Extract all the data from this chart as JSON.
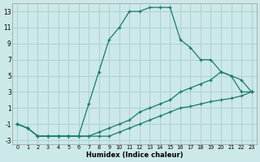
{
  "xlabel": "Humidex (Indice chaleur)",
  "bg_color": "#cce8e8",
  "grid_color": "#a8cccc",
  "line_color": "#1a7a6e",
  "xlim": [
    0,
    23
  ],
  "ylim": [
    -3.5,
    14.0
  ],
  "xticks": [
    0,
    1,
    2,
    3,
    4,
    5,
    6,
    7,
    8,
    9,
    10,
    11,
    12,
    13,
    14,
    15,
    16,
    17,
    18,
    19,
    20,
    21,
    22,
    23
  ],
  "yticks": [
    -3,
    -1,
    1,
    3,
    5,
    7,
    9,
    11,
    13
  ],
  "line1_x": [
    0,
    1,
    2,
    3,
    4,
    5,
    6,
    7,
    8,
    9,
    10,
    11,
    12,
    13,
    14,
    15,
    16,
    17,
    18,
    19,
    20,
    21,
    22,
    23
  ],
  "line1_y": [
    -1,
    -1.5,
    -2.5,
    -2.5,
    -2.5,
    -2.5,
    -2.5,
    -2.5,
    -2.5,
    -2.5,
    -2.0,
    -1.5,
    -1.0,
    -0.5,
    0.0,
    0.5,
    1.0,
    1.2,
    1.5,
    1.8,
    2.0,
    2.2,
    2.5,
    3.0
  ],
  "line2_x": [
    0,
    1,
    2,
    3,
    4,
    5,
    6,
    7,
    8,
    9,
    10,
    11,
    12,
    13,
    14,
    15,
    16,
    17,
    18,
    19,
    20,
    21,
    22,
    23
  ],
  "line2_y": [
    -1,
    -1.5,
    -2.5,
    -2.5,
    -2.5,
    -2.5,
    -2.5,
    -2.5,
    -2.0,
    -1.5,
    -1.0,
    -0.5,
    0.5,
    1.0,
    1.5,
    2.0,
    3.0,
    3.5,
    4.0,
    4.5,
    5.5,
    5.0,
    4.5,
    3.0
  ],
  "line3_x": [
    0,
    1,
    2,
    3,
    4,
    5,
    6,
    7,
    8,
    9,
    10,
    11,
    12,
    13,
    14,
    15,
    16,
    17,
    18,
    19,
    20,
    21,
    22,
    23
  ],
  "line3_y": [
    -1,
    -1.5,
    -2.5,
    -2.5,
    -2.5,
    -2.5,
    -2.5,
    1.5,
    5.5,
    9.5,
    11,
    13,
    13,
    13.5,
    13.5,
    13.5,
    9.5,
    8.5,
    7.0,
    7.0,
    5.5,
    5.0,
    3.0,
    3.0
  ]
}
